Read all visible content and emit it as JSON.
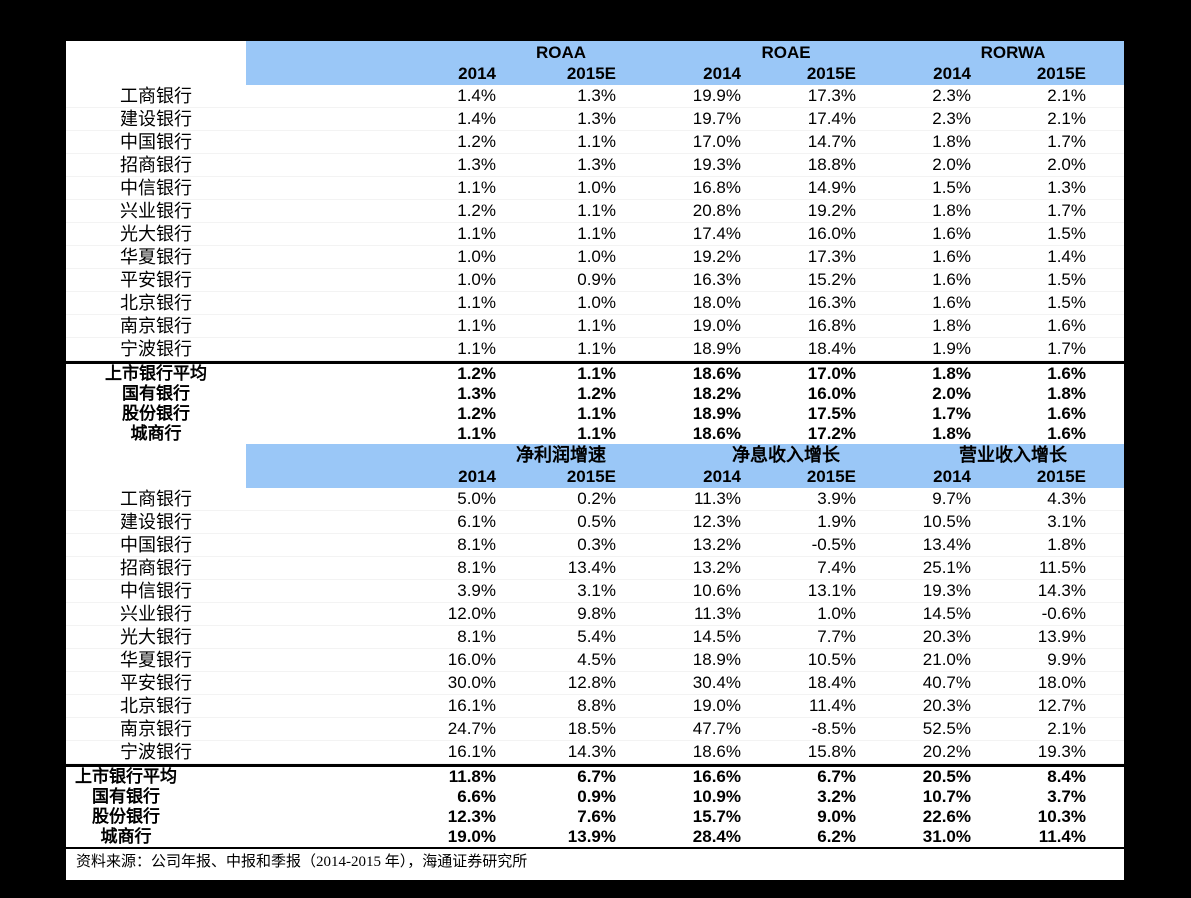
{
  "colors": {
    "background": "#000000",
    "table_background": "#ffffff",
    "header_band_blue": "#9AC7F7",
    "text": "#000000"
  },
  "footer": {
    "source": "资料来源：公司年报、中报和季报（2014-2015 年），海通证券研究所"
  },
  "chart_data": [
    {
      "type": "table",
      "groups": [
        "ROAA",
        "ROAE",
        "RORWA"
      ],
      "year_headers": [
        "2014",
        "2015E",
        "2014",
        "2015E",
        "2014",
        "2015E"
      ],
      "rows": [
        {
          "name": "工商银行",
          "values": [
            "1.4%",
            "1.3%",
            "19.9%",
            "17.3%",
            "2.3%",
            "2.1%"
          ]
        },
        {
          "name": "建设银行",
          "values": [
            "1.4%",
            "1.3%",
            "19.7%",
            "17.4%",
            "2.3%",
            "2.1%"
          ]
        },
        {
          "name": "中国银行",
          "values": [
            "1.2%",
            "1.1%",
            "17.0%",
            "14.7%",
            "1.8%",
            "1.7%"
          ]
        },
        {
          "name": "招商银行",
          "values": [
            "1.3%",
            "1.3%",
            "19.3%",
            "18.8%",
            "2.0%",
            "2.0%"
          ]
        },
        {
          "name": "中信银行",
          "values": [
            "1.1%",
            "1.0%",
            "16.8%",
            "14.9%",
            "1.5%",
            "1.3%"
          ]
        },
        {
          "name": "兴业银行",
          "values": [
            "1.2%",
            "1.1%",
            "20.8%",
            "19.2%",
            "1.8%",
            "1.7%"
          ]
        },
        {
          "name": "光大银行",
          "values": [
            "1.1%",
            "1.1%",
            "17.4%",
            "16.0%",
            "1.6%",
            "1.5%"
          ]
        },
        {
          "name": "华夏银行",
          "values": [
            "1.0%",
            "1.0%",
            "19.2%",
            "17.3%",
            "1.6%",
            "1.4%"
          ]
        },
        {
          "name": "平安银行",
          "values": [
            "1.0%",
            "0.9%",
            "16.3%",
            "15.2%",
            "1.6%",
            "1.5%"
          ]
        },
        {
          "name": "北京银行",
          "values": [
            "1.1%",
            "1.0%",
            "18.0%",
            "16.3%",
            "1.6%",
            "1.5%"
          ]
        },
        {
          "name": "南京银行",
          "values": [
            "1.1%",
            "1.1%",
            "19.0%",
            "16.8%",
            "1.8%",
            "1.6%"
          ]
        },
        {
          "name": "宁波银行",
          "values": [
            "1.1%",
            "1.1%",
            "18.9%",
            "18.4%",
            "1.9%",
            "1.7%"
          ]
        }
      ],
      "summary_rows": [
        {
          "name": "上市银行平均",
          "values": [
            "1.2%",
            "1.1%",
            "18.6%",
            "17.0%",
            "1.8%",
            "1.6%"
          ]
        },
        {
          "name": "国有银行",
          "values": [
            "1.3%",
            "1.2%",
            "18.2%",
            "16.0%",
            "2.0%",
            "1.8%"
          ]
        },
        {
          "name": "股份银行",
          "values": [
            "1.2%",
            "1.1%",
            "18.9%",
            "17.5%",
            "1.7%",
            "1.6%"
          ]
        },
        {
          "name": "城商行",
          "values": [
            "1.1%",
            "1.1%",
            "18.6%",
            "17.2%",
            "1.8%",
            "1.6%"
          ]
        }
      ]
    },
    {
      "type": "table",
      "groups": [
        "净利润增速",
        "净息收入增长",
        "营业收入增长"
      ],
      "year_headers": [
        "2014",
        "2015E",
        "2014",
        "2015E",
        "2014",
        "2015E"
      ],
      "rows": [
        {
          "name": "工商银行",
          "values": [
            "5.0%",
            "0.2%",
            "11.3%",
            "3.9%",
            "9.7%",
            "4.3%"
          ]
        },
        {
          "name": "建设银行",
          "values": [
            "6.1%",
            "0.5%",
            "12.3%",
            "1.9%",
            "10.5%",
            "3.1%"
          ]
        },
        {
          "name": "中国银行",
          "values": [
            "8.1%",
            "0.3%",
            "13.2%",
            "-0.5%",
            "13.4%",
            "1.8%"
          ]
        },
        {
          "name": "招商银行",
          "values": [
            "8.1%",
            "13.4%",
            "13.2%",
            "7.4%",
            "25.1%",
            "11.5%"
          ]
        },
        {
          "name": "中信银行",
          "values": [
            "3.9%",
            "3.1%",
            "10.6%",
            "13.1%",
            "19.3%",
            "14.3%"
          ]
        },
        {
          "name": "兴业银行",
          "values": [
            "12.0%",
            "9.8%",
            "11.3%",
            "1.0%",
            "14.5%",
            "-0.6%"
          ]
        },
        {
          "name": "光大银行",
          "values": [
            "8.1%",
            "5.4%",
            "14.5%",
            "7.7%",
            "20.3%",
            "13.9%"
          ]
        },
        {
          "name": "华夏银行",
          "values": [
            "16.0%",
            "4.5%",
            "18.9%",
            "10.5%",
            "21.0%",
            "9.9%"
          ]
        },
        {
          "name": "平安银行",
          "values": [
            "30.0%",
            "12.8%",
            "30.4%",
            "18.4%",
            "40.7%",
            "18.0%"
          ]
        },
        {
          "name": "北京银行",
          "values": [
            "16.1%",
            "8.8%",
            "19.0%",
            "11.4%",
            "20.3%",
            "12.7%"
          ]
        },
        {
          "name": "南京银行",
          "values": [
            "24.7%",
            "18.5%",
            "47.7%",
            "-8.5%",
            "52.5%",
            "2.1%"
          ]
        },
        {
          "name": "宁波银行",
          "values": [
            "16.1%",
            "14.3%",
            "18.6%",
            "15.8%",
            "20.2%",
            "19.3%"
          ]
        }
      ],
      "summary_rows": [
        {
          "name": "上市银行平均",
          "values": [
            "11.8%",
            "6.7%",
            "16.6%",
            "6.7%",
            "20.5%",
            "8.4%"
          ]
        },
        {
          "name": "国有银行",
          "values": [
            "6.6%",
            "0.9%",
            "10.9%",
            "3.2%",
            "10.7%",
            "3.7%"
          ]
        },
        {
          "name": "股份银行",
          "values": [
            "12.3%",
            "7.6%",
            "15.7%",
            "9.0%",
            "22.6%",
            "10.3%"
          ]
        },
        {
          "name": "城商行",
          "values": [
            "19.0%",
            "13.9%",
            "28.4%",
            "6.2%",
            "31.0%",
            "11.4%"
          ]
        }
      ]
    }
  ]
}
